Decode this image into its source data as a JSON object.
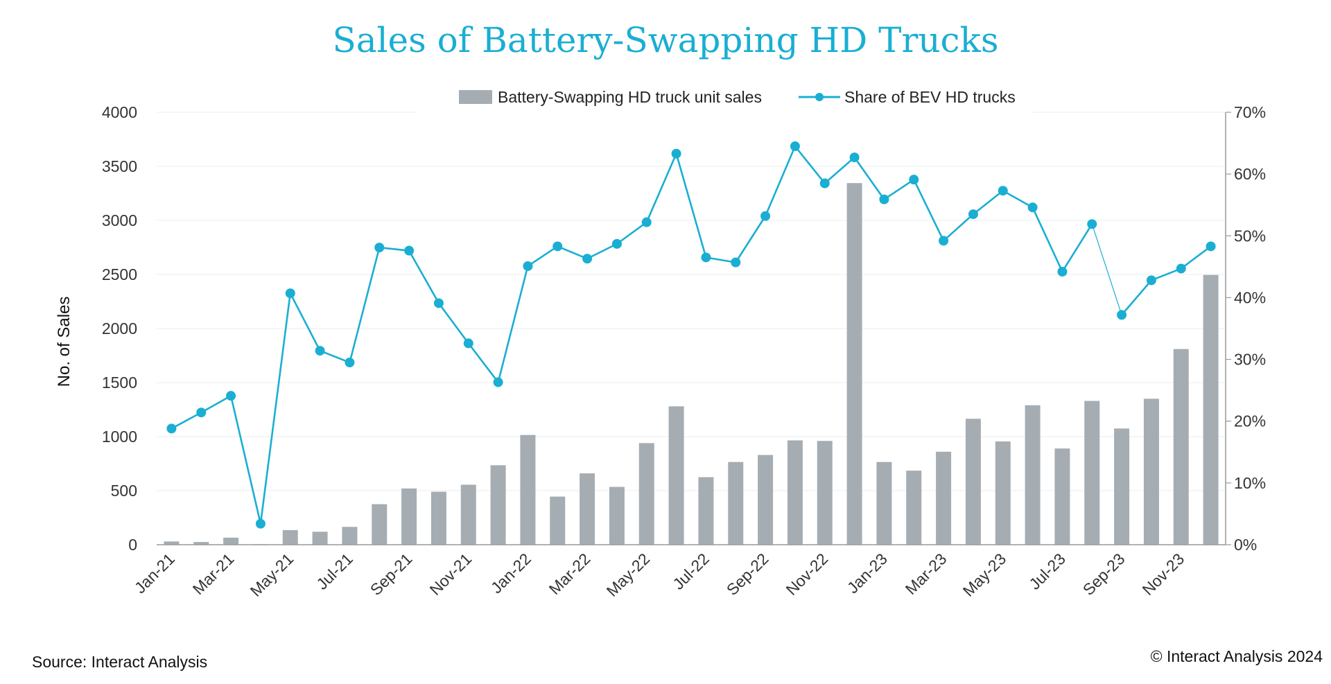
{
  "chart_data": {
    "type": "bar",
    "title": "Sales of Battery-Swapping HD Trucks",
    "ylabel": "No. of Sales",
    "ylim": [
      0,
      4000
    ],
    "yticks": [
      "0",
      "500",
      "1000",
      "1500",
      "2000",
      "2500",
      "3000",
      "3500",
      "4000"
    ],
    "y2lim": [
      0,
      70
    ],
    "y2ticks": [
      "0%",
      "10%",
      "20%",
      "30%",
      "40%",
      "50%",
      "60%",
      "70%"
    ],
    "categories": [
      "Jan-21",
      "Feb-21",
      "Mar-21",
      "Apr-21",
      "May-21",
      "Jun-21",
      "Jul-21",
      "Aug-21",
      "Sep-21",
      "Oct-21",
      "Nov-21",
      "Dec-21",
      "Jan-22",
      "Feb-22",
      "Mar-22",
      "Apr-22",
      "May-22",
      "Jun-22",
      "Jul-22",
      "Aug-22",
      "Sep-22",
      "Oct-22",
      "Nov-22",
      "Dec-22",
      "Jan-23",
      "Feb-23",
      "Mar-23",
      "Apr-23",
      "May-23",
      "Jun-23",
      "Jul-23",
      "Aug-23",
      "Sep-23",
      "Oct-23",
      "Nov-23",
      "Dec-23"
    ],
    "xtick_labels": [
      "Jan-21",
      "Mar-21",
      "May-21",
      "Jul-21",
      "Sep-21",
      "Nov-21",
      "Jan-22",
      "Mar-22",
      "May-22",
      "Jul-22",
      "Sep-22",
      "Nov-22",
      "Jan-23",
      "Mar-23",
      "May-23",
      "Jul-23",
      "Sep-23",
      "Nov-23"
    ],
    "series": [
      {
        "name": "Battery-Swapping HD truck unit sales",
        "type": "bar",
        "axis": "left",
        "color": "#a5adb3",
        "values": [
          30,
          25,
          65,
          5,
          135,
          120,
          165,
          375,
          520,
          490,
          555,
          735,
          1015,
          445,
          660,
          535,
          940,
          1280,
          625,
          765,
          830,
          965,
          960,
          3345,
          765,
          685,
          860,
          1165,
          955,
          1290,
          890,
          1330,
          1075,
          1350,
          1810,
          2495
        ]
      },
      {
        "name": "Share of BEV HD trucks",
        "type": "line",
        "axis": "right",
        "color": "#1aaed3",
        "values": [
          18.8,
          21.4,
          24.1,
          3.4,
          40.7,
          31.4,
          29.5,
          48.1,
          47.6,
          39.1,
          32.6,
          26.3,
          45.1,
          48.3,
          46.3,
          48.7,
          52.2,
          63.3,
          46.5,
          45.7,
          53.2,
          64.5,
          58.5,
          62.7,
          55.9,
          59.1,
          49.2,
          53.5,
          57.3,
          54.6,
          44.2,
          51.9,
          37.2,
          42.8,
          44.7,
          48.3
        ]
      }
    ],
    "grid": true,
    "legend_position": "top-center"
  },
  "footer": {
    "source": "Source: Interact Analysis",
    "copyright": "© Interact Analysis 2024"
  }
}
